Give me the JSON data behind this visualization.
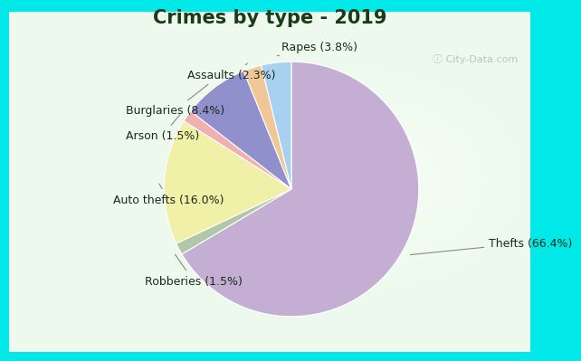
{
  "title": "Crimes by type - 2019",
  "ordered_slices": [
    {
      "label": "Thefts",
      "pct": 66.4,
      "color": "#c4aed4"
    },
    {
      "label": "Robberies",
      "pct": 1.5,
      "color": "#b0c8a8"
    },
    {
      "label": "Auto thefts",
      "pct": 16.0,
      "color": "#f0f0a8"
    },
    {
      "label": "Arson",
      "pct": 1.5,
      "color": "#f0b0b0"
    },
    {
      "label": "Burglaries",
      "pct": 8.4,
      "color": "#9090cc"
    },
    {
      "label": "Assaults",
      "pct": 2.3,
      "color": "#f0c898"
    },
    {
      "label": "Rapes",
      "pct": 3.8,
      "color": "#a8d0f0"
    }
  ],
  "bg_outer": "#00e8e8",
  "bg_inner_light": "#e8f5e0",
  "bg_inner_white": "#f8fff8",
  "title_fontsize": 15,
  "label_fontsize": 9,
  "title_color": "#1a3a1a",
  "watermark_color": "#b0c8c8",
  "border_width": 12
}
